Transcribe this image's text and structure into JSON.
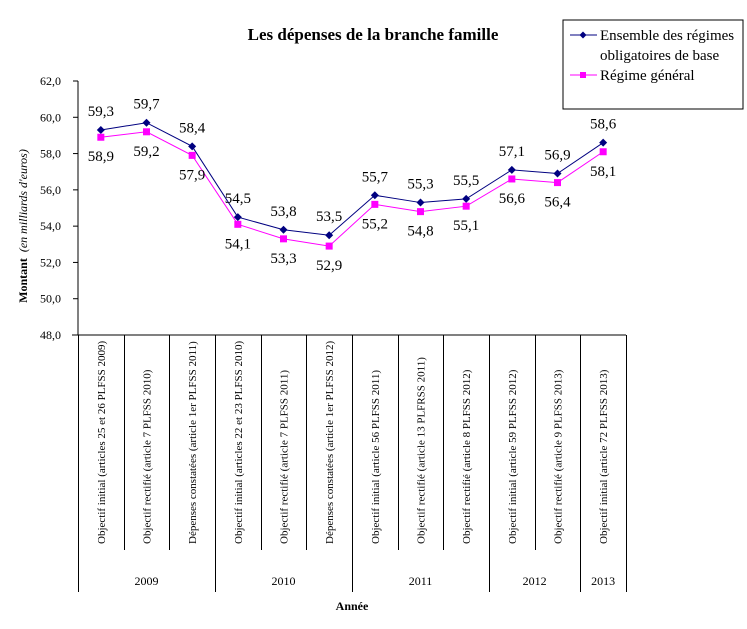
{
  "chart_data": {
    "type": "line",
    "title": "Les dépenses de la branche famille",
    "xlabel": "Année",
    "ylabel": "Montant",
    "ylabel_unit": "(en milliards d'euros)",
    "ylim": [
      48.0,
      62.0
    ],
    "ytick_step": 2.0,
    "yticks": [
      "48,0",
      "50,0",
      "52,0",
      "54,0",
      "56,0",
      "58,0",
      "60,0",
      "62,0"
    ],
    "grid": false,
    "legend_position": "top-right",
    "categories": [
      "Objectif initial (articles 25 et 26 PLFSS 2009)",
      "Objectif rectifié (article 7 PLFSS 2010)",
      "Dépenses constatées (article 1er PLFSS 2011)",
      "Objectif initial (articles 22 et 23 PLFSS 2010)",
      "Objectif rectifié (article 7 PLFSS 2011)",
      "Dépenses constatées (article 1er PLFSS 2012)",
      "Objectif initial (article 56 PLFSS 2011)",
      "Objectif rectifié (article 13 PLFRSS 2011)",
      "Objectif rectifié (article 8  PLFSS 2012)",
      "Objectif initial (article 59 PLFSS 2012)",
      "Objectif rectifié    (article 9 PLFSS 2013)",
      "Objectif initial (article 72 PLFSS 2013)"
    ],
    "groups": [
      {
        "label": "2009",
        "count": 3
      },
      {
        "label": "2010",
        "count": 3
      },
      {
        "label": "2011",
        "count": 3
      },
      {
        "label": "2012",
        "count": 2
      },
      {
        "label": "2013",
        "count": 1
      }
    ],
    "series": [
      {
        "name": "Ensemble des régimes obligatoires de base",
        "legend_lines": [
          "Ensemble des régimes",
          "obligatoires de base"
        ],
        "color": "#000080",
        "marker": "diamond",
        "values": [
          59.3,
          59.7,
          58.4,
          54.5,
          53.8,
          53.5,
          55.7,
          55.3,
          55.5,
          57.1,
          56.9,
          58.6
        ],
        "labels": [
          "59,3",
          "59,7",
          "58,4",
          "54,5",
          "53,8",
          "53,5",
          "55,7",
          "55,3",
          "55,5",
          "57,1",
          "56,9",
          "58,6"
        ],
        "label_position": "above"
      },
      {
        "name": "Régime général",
        "legend_lines": [
          "Régime général"
        ],
        "color": "#FF00FF",
        "marker": "square",
        "values": [
          58.9,
          59.2,
          57.9,
          54.1,
          53.3,
          52.9,
          55.2,
          54.8,
          55.1,
          56.6,
          56.4,
          58.1
        ],
        "labels": [
          "58,9",
          "59,2",
          "57,9",
          "54,1",
          "53,3",
          "52,9",
          "55,2",
          "54,8",
          "55,1",
          "56,6",
          "56,4",
          "58,1"
        ],
        "label_position": "below"
      }
    ]
  }
}
